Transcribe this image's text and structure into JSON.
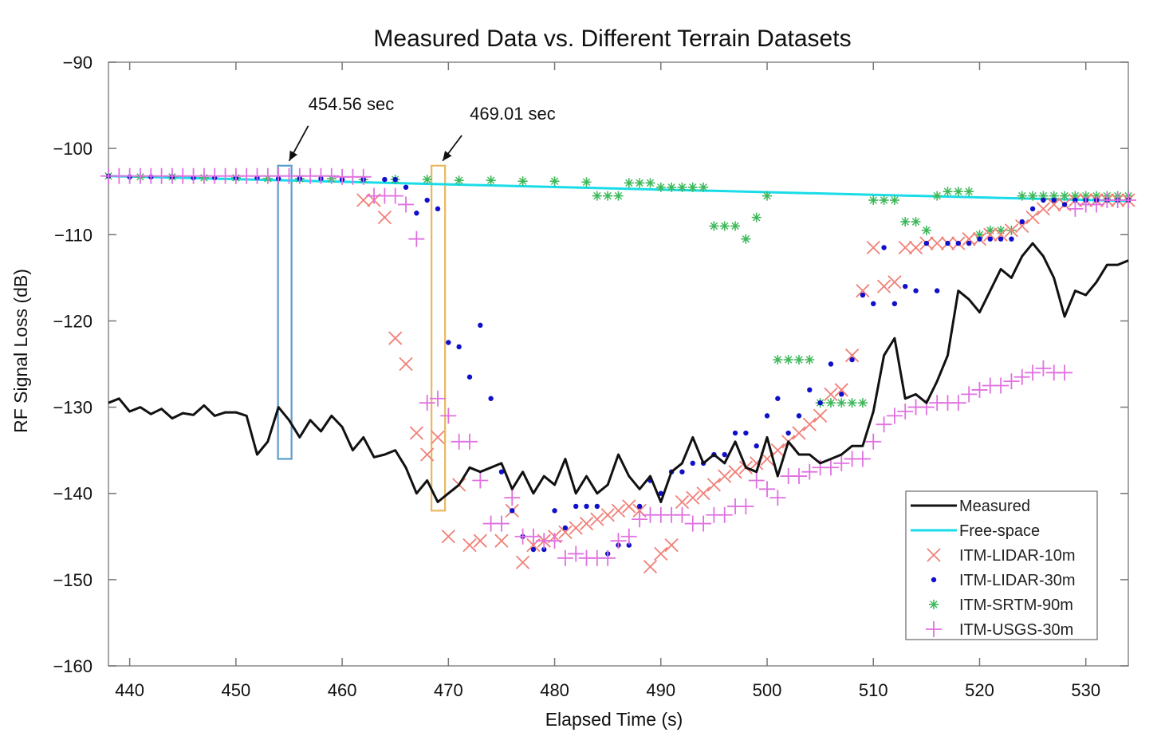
{
  "chart_data": {
    "type": "line",
    "title": "Measured Data vs. Different Terrain Datasets",
    "xlabel": "Elapsed Time (s)",
    "ylabel": "RF Signal Loss (dB)",
    "xlim": [
      438,
      534
    ],
    "ylim": [
      -160,
      -90
    ],
    "xticks": [
      440,
      450,
      460,
      470,
      480,
      490,
      500,
      510,
      520,
      530
    ],
    "yticks": [
      -90,
      -100,
      -110,
      -120,
      -130,
      -140,
      -150,
      -160
    ],
    "grid": false,
    "legend_position": "bottom-right",
    "annotations": [
      {
        "label": "454.56 sec",
        "x": 454.56,
        "y_top": -102,
        "y_bottom": -136,
        "color": "#5a9ec9"
      },
      {
        "label": "469.01 sec",
        "x": 469.01,
        "y_top": -102,
        "y_bottom": -142,
        "color": "#e8b860"
      }
    ],
    "series": [
      {
        "name": "Measured",
        "marker": "line",
        "color": "#111111",
        "x": [
          438,
          439,
          440,
          441,
          442,
          443,
          444,
          445,
          446,
          447,
          448,
          449,
          450,
          451,
          452,
          453,
          454,
          455,
          456,
          457,
          458,
          459,
          460,
          461,
          462,
          463,
          464,
          465,
          466,
          467,
          468,
          469,
          470,
          471,
          472,
          473,
          474,
          475,
          476,
          477,
          478,
          479,
          480,
          481,
          482,
          483,
          484,
          485,
          486,
          487,
          488,
          489,
          490,
          491,
          492,
          493,
          494,
          495,
          496,
          497,
          498,
          499,
          500,
          501,
          502,
          503,
          504,
          505,
          506,
          507,
          508,
          509,
          510,
          511,
          512,
          513,
          514,
          515,
          516,
          517,
          518,
          519,
          520,
          521,
          522,
          523,
          524,
          525,
          526,
          527,
          528,
          529,
          530,
          531,
          532,
          533,
          534
        ],
        "y": [
          -129.5,
          -129,
          -130.5,
          -130,
          -130.8,
          -130.2,
          -131.3,
          -130.7,
          -130.9,
          -129.8,
          -131,
          -130.6,
          -130.6,
          -131,
          -135.5,
          -134,
          -130,
          -131.5,
          -133.5,
          -131.5,
          -132.8,
          -131,
          -132.3,
          -135,
          -133.5,
          -135.8,
          -135.5,
          -135,
          -137,
          -140,
          -138.5,
          -141,
          -140,
          -139,
          -137,
          -137.5,
          -137,
          -136.5,
          -139.5,
          -137.5,
          -140,
          -138,
          -139,
          -136,
          -140,
          -138,
          -140,
          -139,
          -135.5,
          -138,
          -139.5,
          -138,
          -141,
          -137.5,
          -136.5,
          -133.5,
          -136.5,
          -135.5,
          -136.5,
          -134,
          -137,
          -137.5,
          -133.5,
          -138,
          -134,
          -135.5,
          -135.5,
          -136.5,
          -136,
          -135.5,
          -134.5,
          -134.5,
          -130.5,
          -124,
          -122,
          -129,
          -128.5,
          -129.5,
          -127,
          -124,
          -116.5,
          -117.5,
          -119,
          -116.5,
          -114,
          -115,
          -112.5,
          -111,
          -112.5,
          -115,
          -119.5,
          -116.5,
          -117,
          -115.5,
          -113.5,
          -113.5,
          -113
        ]
      },
      {
        "name": "Free-space",
        "marker": "line",
        "color": "#19dce8",
        "x": [
          438,
          534
        ],
        "y": [
          -103.2,
          -106.1
        ]
      },
      {
        "name": "ITM-LIDAR-10m",
        "marker": "x",
        "color": "#f08078",
        "x": [
          462,
          463,
          464,
          465,
          466,
          467,
          468,
          469,
          470,
          471,
          472,
          473,
          475,
          476,
          477,
          478,
          479,
          480,
          481,
          482,
          483,
          484,
          485,
          486,
          487,
          488,
          489,
          490,
          491,
          492,
          493,
          494,
          495,
          496,
          497,
          498,
          499,
          500,
          501,
          502,
          503,
          504,
          505,
          506,
          507,
          508,
          509,
          510,
          511,
          512,
          513,
          514,
          515,
          516,
          517,
          518,
          519,
          520,
          521,
          522,
          523,
          524,
          525,
          526,
          527,
          528,
          529,
          530,
          531,
          532,
          533,
          534
        ],
        "y": [
          -106,
          -106,
          -108,
          -122,
          -125,
          -133,
          -135.5,
          -133.5,
          -145,
          -139,
          -146,
          -145.5,
          -145.5,
          -142,
          -148,
          -146,
          -145.5,
          -145,
          -144.5,
          -144,
          -143.5,
          -143,
          -142.5,
          -142,
          -141.5,
          -142,
          -148.5,
          -147,
          -146,
          -141,
          -140.5,
          -140,
          -139,
          -138,
          -137.5,
          -137,
          -136.5,
          -136,
          -135,
          -134,
          -133,
          -132,
          -131,
          -128.5,
          -128,
          -124,
          -116.5,
          -111.5,
          -116,
          -115.5,
          -111.5,
          -111.5,
          -111,
          -111,
          -111,
          -111,
          -110.5,
          -110.5,
          -110,
          -110,
          -109.5,
          -109,
          -108,
          -107,
          -106.5,
          -106.5,
          -106,
          -106,
          -106,
          -106,
          -106,
          -106
        ]
      },
      {
        "name": "ITM-LIDAR-30m",
        "marker": "dot",
        "color": "#1010cc",
        "x": [
          438,
          440,
          442,
          444,
          446,
          448,
          450,
          452,
          454,
          456,
          458,
          460,
          462,
          464,
          465,
          466,
          467,
          468,
          469,
          470,
          471,
          472,
          473,
          474,
          475,
          476,
          477,
          478,
          479,
          480,
          481,
          482,
          483,
          484,
          485,
          486,
          487,
          488,
          489,
          490,
          491,
          492,
          493,
          494,
          495,
          496,
          497,
          498,
          499,
          500,
          501,
          502,
          503,
          504,
          505,
          506,
          507,
          508,
          509,
          510,
          511,
          512,
          513,
          514,
          515,
          516,
          517,
          518,
          519,
          520,
          521,
          522,
          523,
          524,
          525,
          526,
          527,
          528,
          529,
          530,
          531,
          532,
          533,
          534
        ],
        "y": [
          -103.2,
          -103.3,
          -103.3,
          -103.3,
          -103.4,
          -103.4,
          -103.4,
          -103.4,
          -103.5,
          -103.5,
          -103.5,
          -103.6,
          -103.6,
          -103.6,
          -103.6,
          -104.5,
          -107.5,
          -106,
          -107,
          -122.5,
          -123,
          -126.5,
          -120.5,
          -129,
          -137.5,
          -142,
          -145,
          -146.5,
          -146.5,
          -142,
          -144,
          -141.5,
          -141.5,
          -141.5,
          -147,
          -146,
          -146,
          -141.5,
          -138.5,
          -140,
          -137.5,
          -137.5,
          -136.5,
          -136.5,
          -135.5,
          -135.5,
          -133,
          -133,
          -134.5,
          -131,
          -129,
          -133,
          -131,
          -128,
          -129.5,
          -125,
          -128.5,
          -124.5,
          -117,
          -118,
          -111.5,
          -118,
          -116,
          -116.5,
          -111,
          -116.5,
          -111,
          -111,
          -111,
          -110.5,
          -110.5,
          -110.5,
          -110.5,
          -108.5,
          -107,
          -106,
          -106,
          -106.5,
          -106,
          -106,
          -106,
          -106,
          -106,
          -106
        ]
      },
      {
        "name": "ITM-SRTM-90m",
        "marker": "star",
        "color": "#3cb858",
        "x": [
          438,
          441,
          444,
          447,
          450,
          453,
          456,
          459,
          462,
          465,
          468,
          471,
          474,
          477,
          480,
          483,
          484,
          485,
          486,
          487,
          488,
          489,
          490,
          491,
          492,
          493,
          494,
          495,
          496,
          497,
          498,
          499,
          500,
          501,
          502,
          503,
          504,
          505,
          506,
          507,
          508,
          509,
          510,
          511,
          512,
          513,
          514,
          515,
          516,
          517,
          518,
          519,
          520,
          521,
          522,
          523,
          524,
          525,
          526,
          527,
          528,
          529,
          530,
          531,
          532,
          533,
          534
        ],
        "y": [
          -103.2,
          -103.3,
          -103.3,
          -103.4,
          -103.4,
          -103.5,
          -103.5,
          -103.5,
          -103.6,
          -103.6,
          -103.6,
          -103.7,
          -103.7,
          -103.8,
          -103.8,
          -103.9,
          -105.5,
          -105.5,
          -105.5,
          -104,
          -104,
          -104,
          -104.5,
          -104.5,
          -104.5,
          -104.5,
          -104.5,
          -109,
          -109,
          -109,
          -110.5,
          -108,
          -105.5,
          -124.5,
          -124.5,
          -124.5,
          -124.5,
          -129.5,
          -129.5,
          -129.5,
          -129.5,
          -129.5,
          -106,
          -106,
          -106,
          -108.5,
          -108.5,
          -109.5,
          -105.5,
          -105,
          -105,
          -105,
          -110,
          -109.5,
          -109.5,
          -109.5,
          -105.5,
          -105.5,
          -105.5,
          -105.5,
          -105.5,
          -105.5,
          -105.5,
          -105.5,
          -105.5,
          -105.5,
          -105.5
        ]
      },
      {
        "name": "ITM-USGS-30m",
        "marker": "plus",
        "color": "#e070e0",
        "x": [
          438,
          439,
          440,
          441,
          442,
          443,
          444,
          445,
          446,
          447,
          448,
          449,
          450,
          451,
          452,
          453,
          454,
          455,
          456,
          457,
          458,
          459,
          460,
          461,
          462,
          463,
          464,
          465,
          466,
          467,
          468,
          469,
          470,
          471,
          472,
          473,
          474,
          475,
          476,
          477,
          478,
          479,
          480,
          481,
          482,
          483,
          484,
          485,
          486,
          487,
          488,
          489,
          490,
          491,
          492,
          493,
          494,
          495,
          496,
          497,
          498,
          499,
          500,
          501,
          502,
          503,
          504,
          505,
          506,
          507,
          508,
          509,
          510,
          511,
          512,
          513,
          514,
          515,
          516,
          517,
          518,
          519,
          520,
          521,
          522,
          523,
          524,
          525,
          526,
          527,
          528,
          529,
          530,
          531,
          532,
          533,
          534
        ],
        "y": [
          -103.2,
          -103.2,
          -103.2,
          -103.2,
          -103.2,
          -103.2,
          -103.2,
          -103.2,
          -103.2,
          -103.2,
          -103.2,
          -103.2,
          -103.2,
          -103.2,
          -103.2,
          -103.2,
          -103.2,
          -103.2,
          -103.2,
          -103.2,
          -103.2,
          -103.2,
          -103.3,
          -103.3,
          -103.3,
          -105.5,
          -105.5,
          -105.5,
          -106.5,
          -110.5,
          -129.5,
          -129,
          -131,
          -134,
          -134,
          -138.5,
          -143.5,
          -143.5,
          -140.5,
          -145,
          -145,
          -145.5,
          -145.5,
          -147.5,
          -147,
          -147.5,
          -147.5,
          -147.5,
          -145.5,
          -145,
          -143,
          -142.5,
          -142.5,
          -142.5,
          -142.5,
          -143.5,
          -143.5,
          -142.5,
          -142.5,
          -141.5,
          -141.5,
          -138.5,
          -139.5,
          -140.5,
          -138,
          -138,
          -137.5,
          -137,
          -137,
          -136.5,
          -136,
          -136,
          -134,
          -132,
          -131,
          -130.5,
          -130,
          -130,
          -129.5,
          -129.5,
          -129.5,
          -128.5,
          -128,
          -127.5,
          -127.5,
          -127,
          -126.5,
          -126,
          -125.5,
          -126,
          -126,
          -107,
          -106.5,
          -106.5,
          -106,
          -106,
          -106
        ]
      }
    ]
  }
}
